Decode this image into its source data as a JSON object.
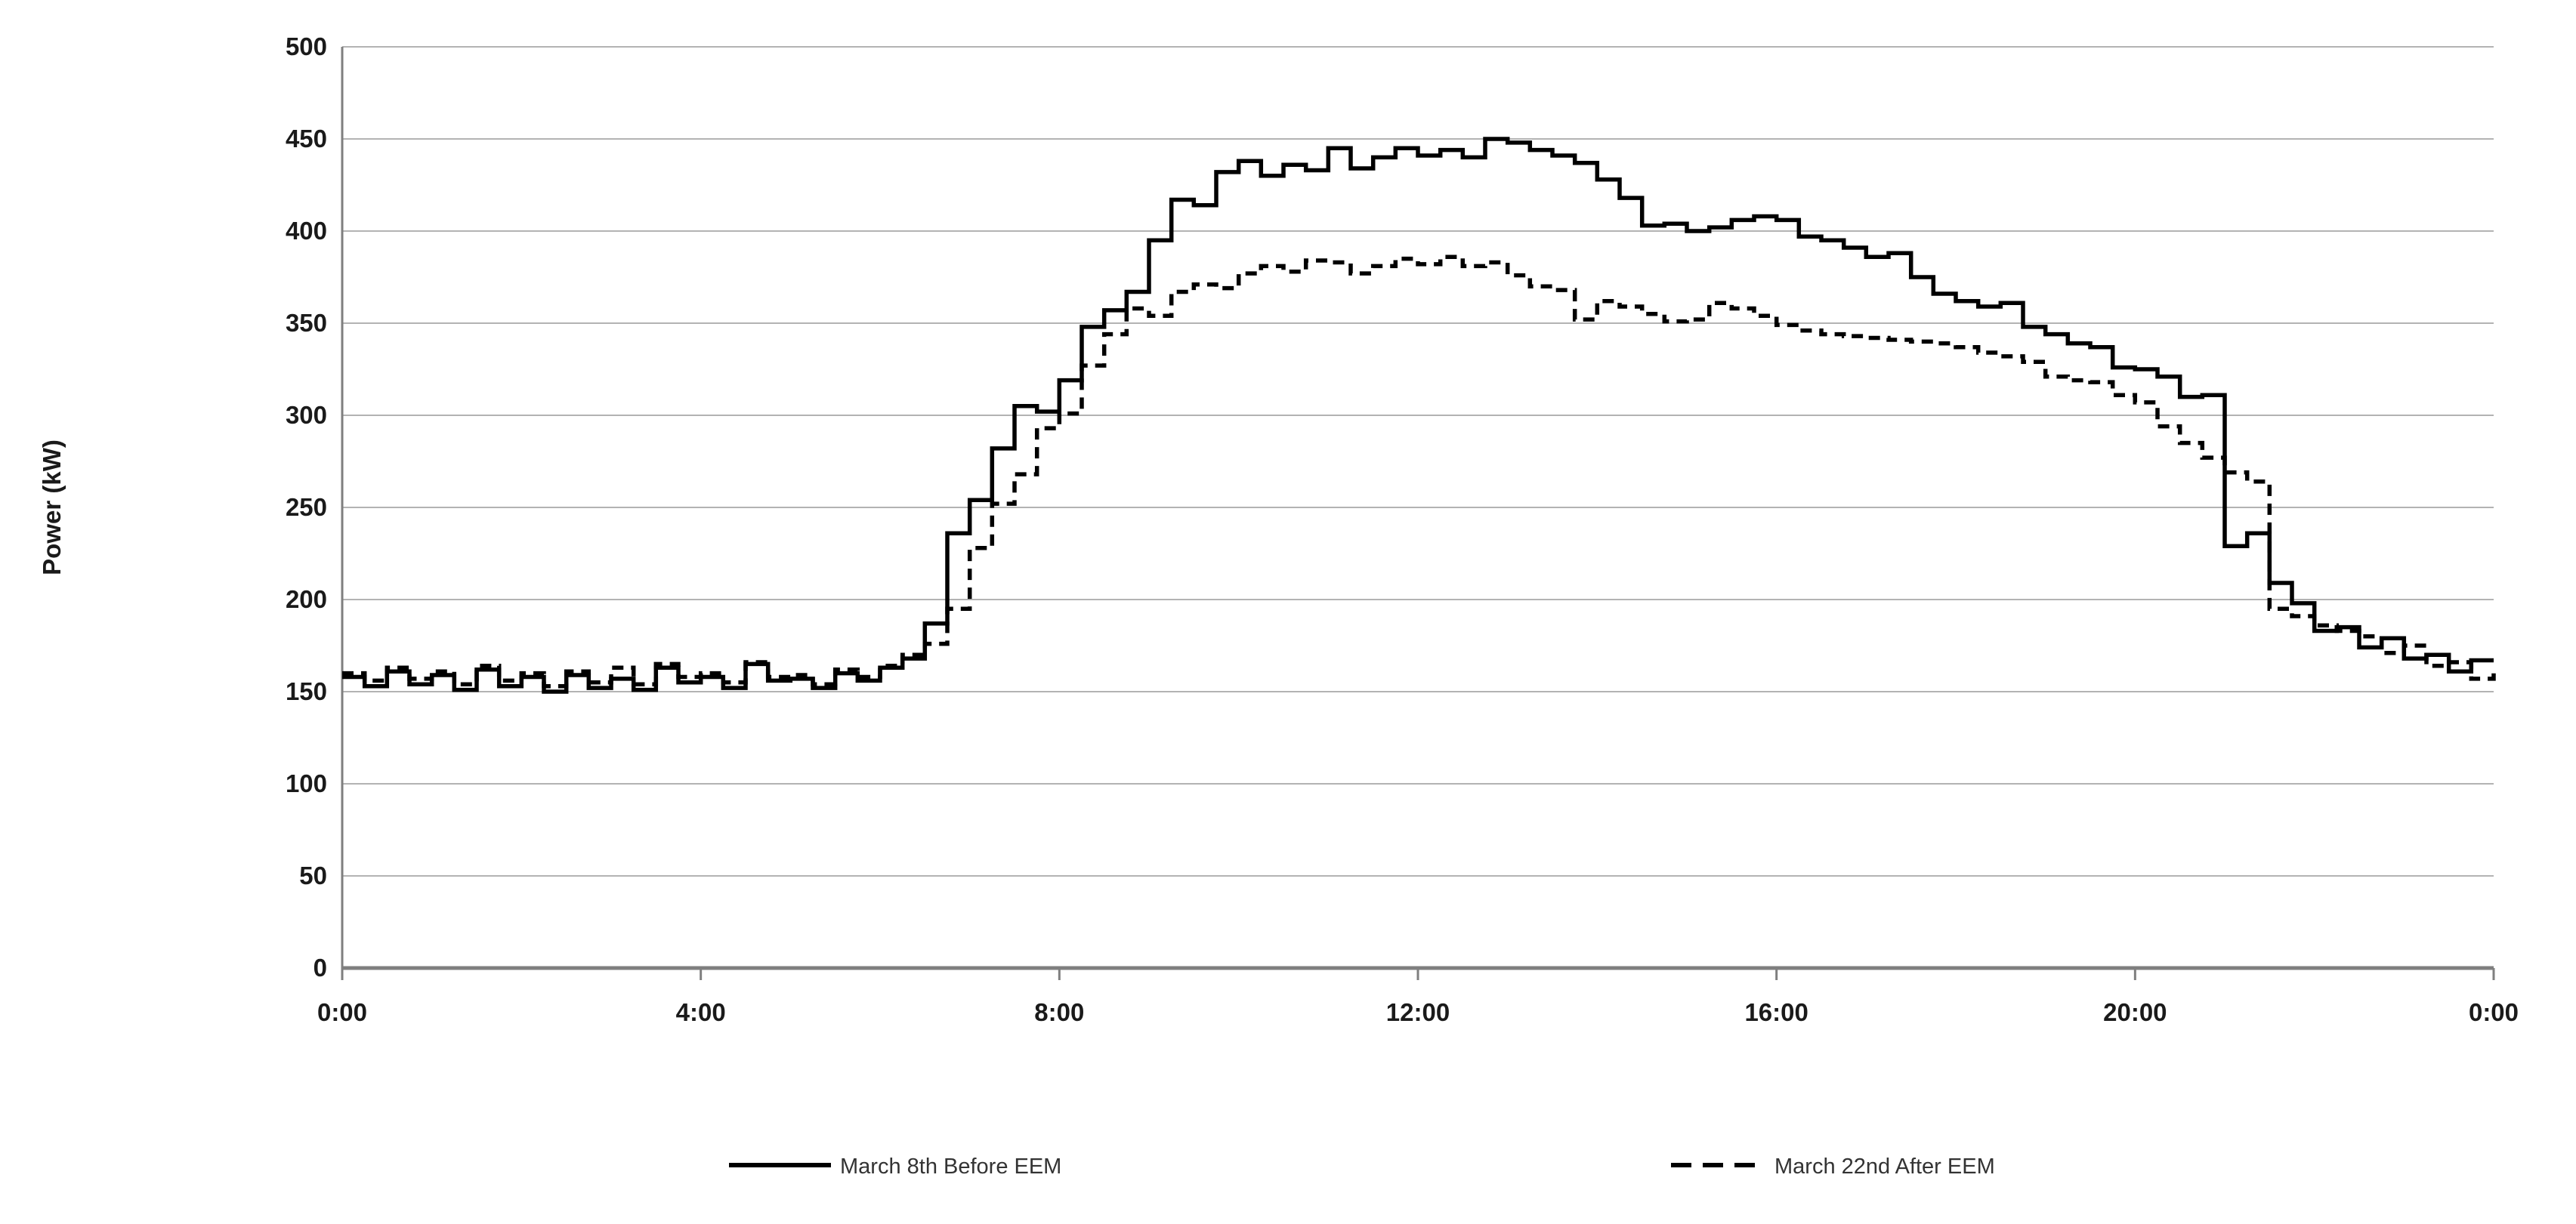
{
  "chart_data": {
    "type": "line",
    "subtype": "step-post",
    "title": "",
    "xlabel": "",
    "ylabel": "Power (kW)",
    "grid": true,
    "legend_position": "bottom",
    "x_axis": {
      "start_hour": 0,
      "end_hour": 24,
      "tick_interval_hours": 4,
      "tick_labels": [
        "0:00",
        "4:00",
        "8:00",
        "12:00",
        "16:00",
        "20:00",
        "0:00"
      ]
    },
    "y_axis": {
      "min": 0,
      "max": 500,
      "tick_step": 50,
      "tick_labels": [
        "0",
        "50",
        "100",
        "150",
        "200",
        "250",
        "300",
        "350",
        "400",
        "450",
        "500"
      ]
    },
    "interval_minutes": 15,
    "series": [
      {
        "name": "March 8th Before EEM",
        "style": "solid",
        "color": "#000000",
        "values": [
          158,
          153,
          161,
          154,
          159,
          151,
          162,
          153,
          158,
          150,
          159,
          152,
          157,
          151,
          163,
          155,
          158,
          152,
          165,
          156,
          157,
          152,
          160,
          156,
          163,
          168,
          187,
          236,
          254,
          282,
          305,
          302,
          319,
          348,
          357,
          367,
          395,
          417,
          414,
          432,
          438,
          430,
          436,
          433,
          445,
          434,
          440,
          445,
          441,
          444,
          440,
          450,
          448,
          444,
          441,
          437,
          428,
          418,
          403,
          404,
          400,
          402,
          406,
          408,
          406,
          397,
          395,
          391,
          386,
          388,
          375,
          366,
          362,
          359,
          361,
          348,
          344,
          339,
          337,
          326,
          325,
          321,
          310,
          311,
          229,
          236,
          209,
          198,
          183,
          185,
          174,
          179,
          168,
          170,
          161,
          167,
          167
        ]
      },
      {
        "name": "March 22nd After EEM",
        "style": "dashed",
        "color": "#000000",
        "values": [
          160,
          156,
          163,
          157,
          161,
          154,
          164,
          156,
          160,
          153,
          161,
          155,
          163,
          154,
          165,
          158,
          160,
          155,
          166,
          158,
          159,
          154,
          162,
          158,
          164,
          170,
          176,
          195,
          228,
          252,
          268,
          293,
          301,
          327,
          344,
          358,
          354,
          367,
          371,
          369,
          377,
          381,
          378,
          384,
          383,
          377,
          381,
          385,
          382,
          386,
          381,
          383,
          376,
          370,
          368,
          352,
          362,
          359,
          355,
          351,
          352,
          361,
          358,
          354,
          349,
          346,
          344,
          343,
          342,
          341,
          340,
          339,
          337,
          334,
          332,
          329,
          321,
          319,
          318,
          311,
          307,
          294,
          285,
          277,
          269,
          264,
          195,
          191,
          186,
          183,
          180,
          171,
          175,
          164,
          166,
          157,
          163
        ]
      }
    ]
  },
  "colors": {
    "background": "#ffffff",
    "gridline": "#b3b3b3",
    "axis": "#7f7f7f",
    "label_text": "#1a1a1a",
    "legend_text": "#333333",
    "series_line": "#000000"
  }
}
